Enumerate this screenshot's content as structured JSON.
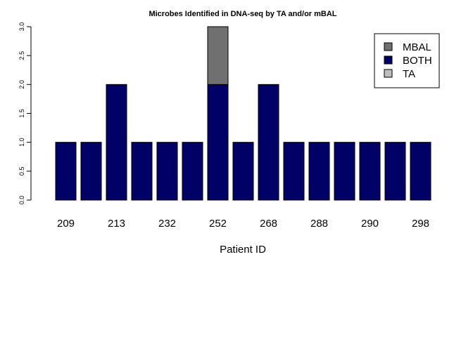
{
  "chart_data": {
    "type": "bar",
    "stacked": true,
    "title": "Microbes Identified in DNA-seq by TA and/or mBAL",
    "xlabel": "Patient ID",
    "ylabel": "",
    "ylim": [
      0,
      3
    ],
    "yticks": [
      "0.0",
      "0.5",
      "1.0",
      "1.5",
      "2.0",
      "2.5",
      "3.0"
    ],
    "categories": [
      "209",
      "",
      "213",
      "",
      "232",
      "",
      "252",
      "",
      "268",
      "",
      "288",
      "",
      "290",
      "",
      "298"
    ],
    "series": [
      {
        "name": "BOTH",
        "color": "#000066",
        "values": [
          1,
          1,
          2,
          1,
          1,
          1,
          2,
          1,
          2,
          1,
          1,
          1,
          1,
          1,
          1
        ]
      },
      {
        "name": "MBAL",
        "color": "#707070",
        "values": [
          0,
          0,
          0,
          0,
          0,
          0,
          1,
          0,
          0,
          0,
          0,
          0,
          0,
          0,
          0
        ]
      },
      {
        "name": "TA",
        "color": "#bebebe",
        "values": [
          0,
          0,
          0,
          0,
          0,
          0,
          0,
          0,
          0,
          0,
          0,
          0,
          0,
          0,
          0
        ]
      }
    ],
    "legend": {
      "placement": "top-right",
      "entries": [
        {
          "label": "MBAL",
          "color": "#707070"
        },
        {
          "label": "BOTH",
          "color": "#000066"
        },
        {
          "label": "TA",
          "color": "#bebebe"
        }
      ]
    },
    "grid": false
  }
}
